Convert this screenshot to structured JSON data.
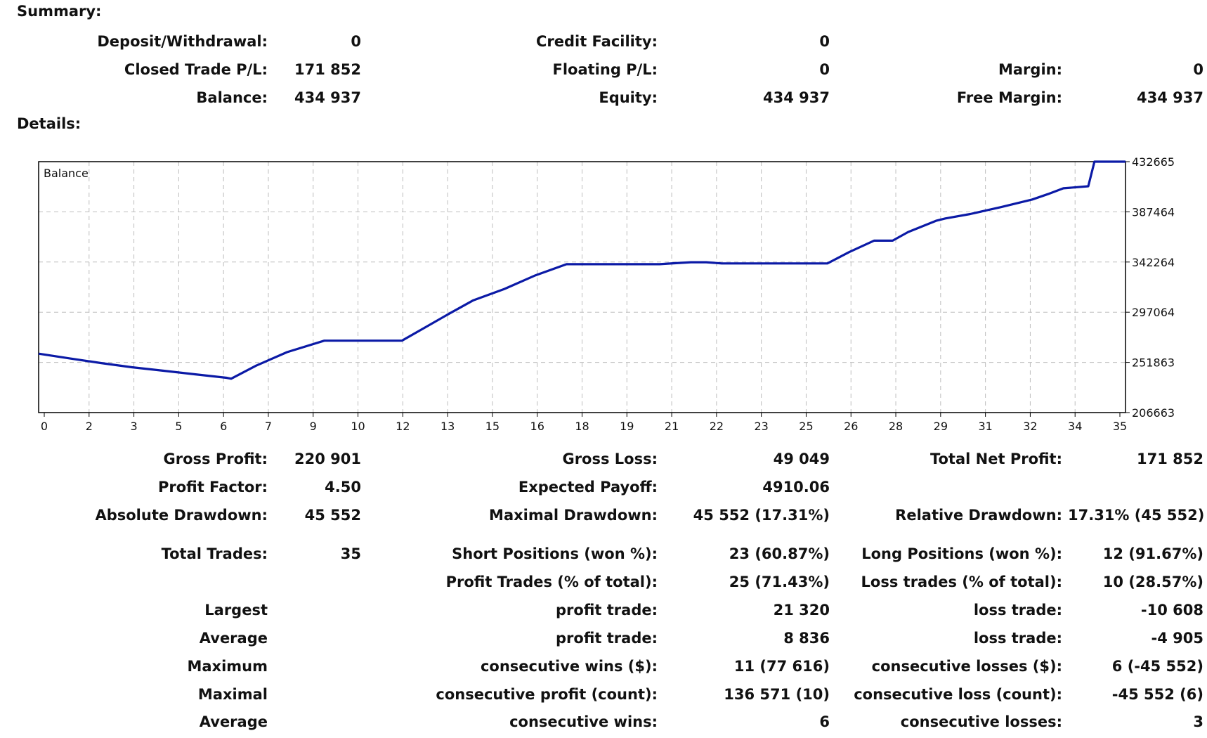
{
  "summary": {
    "heading": "Summary:",
    "rows": [
      [
        {
          "label": "Deposit/Withdrawal:",
          "value": "0"
        },
        {
          "label": "Credit Facility:",
          "value": "0"
        },
        {
          "label": "",
          "value": ""
        }
      ],
      [
        {
          "label": "Closed Trade P/L:",
          "value": "171 852"
        },
        {
          "label": "Floating P/L:",
          "value": "0"
        },
        {
          "label": "Margin:",
          "value": "0"
        }
      ],
      [
        {
          "label": "Balance:",
          "value": "434 937"
        },
        {
          "label": "Equity:",
          "value": "434 937"
        },
        {
          "label": "Free Margin:",
          "value": "434 937"
        }
      ]
    ]
  },
  "details": {
    "heading": "Details:",
    "rows": [
      [
        {
          "label": "Gross Profit:",
          "value": "220 901"
        },
        {
          "label": "Gross Loss:",
          "value": "49 049"
        },
        {
          "label": "Total Net Profit:",
          "value": "171 852"
        }
      ],
      [
        {
          "label": "Profit Factor:",
          "value": "4.50"
        },
        {
          "label": "Expected Payoff:",
          "value": "4910.06"
        },
        {
          "label": "",
          "value": ""
        }
      ],
      [
        {
          "label": "Absolute Drawdown:",
          "value": "45 552"
        },
        {
          "label": "Maximal Drawdown:",
          "value": "45 552 (17.31%)"
        },
        {
          "label": "Relative Drawdown:",
          "value": "17.31% (45 552)"
        }
      ],
      [
        {
          "label": "Total Trades:",
          "value": "35"
        },
        {
          "label": "Short Positions (won %):",
          "value": "23 (60.87%)"
        },
        {
          "label": "Long Positions (won %):",
          "value": "12 (91.67%)"
        }
      ],
      [
        {
          "label": "",
          "value": ""
        },
        {
          "label": "Profit Trades (% of total):",
          "value": "25 (71.43%)"
        },
        {
          "label": "Loss trades (% of total):",
          "value": "10 (28.57%)"
        }
      ],
      [
        {
          "label": "Largest",
          "value": ""
        },
        {
          "label": "profit trade:",
          "value": "21 320"
        },
        {
          "label": "loss trade:",
          "value": "-10 608"
        }
      ],
      [
        {
          "label": "Average",
          "value": ""
        },
        {
          "label": "profit trade:",
          "value": "8 836"
        },
        {
          "label": "loss trade:",
          "value": "-4 905"
        }
      ],
      [
        {
          "label": "Maximum",
          "value": ""
        },
        {
          "label": "consecutive wins ($):",
          "value": "11 (77 616)"
        },
        {
          "label": "consecutive losses ($):",
          "value": "6 (-45 552)"
        }
      ],
      [
        {
          "label": "Maximal",
          "value": ""
        },
        {
          "label": "consecutive profit (count):",
          "value": "136 571 (10)"
        },
        {
          "label": "consecutive loss (count):",
          "value": "-45 552 (6)"
        }
      ],
      [
        {
          "label": "Average",
          "value": ""
        },
        {
          "label": "consecutive wins:",
          "value": "6"
        },
        {
          "label": "consecutive losses:",
          "value": "3"
        }
      ]
    ]
  },
  "chart_data": {
    "type": "line",
    "series": [
      {
        "name": "Balance",
        "x": [
          0,
          1,
          2,
          3,
          4,
          5,
          6.05,
          6.2,
          7,
          8,
          9.2,
          10.5,
          11.7,
          12.5,
          13.2,
          14,
          15,
          16,
          17,
          18,
          19,
          20,
          20.3,
          21,
          21.5,
          22,
          23,
          24,
          25,
          25.4,
          26.1,
          26.9,
          27.5,
          28,
          28.9,
          29.2,
          30,
          31,
          32,
          32.5,
          33,
          33.8,
          34,
          35
        ],
        "y": [
          259700,
          255500,
          251300,
          247500,
          244400,
          241200,
          238000,
          237200,
          248900,
          261100,
          271400,
          271400,
          271400,
          284200,
          295400,
          307800,
          318000,
          330300,
          340300,
          340300,
          340300,
          340300,
          340900,
          342100,
          342100,
          341000,
          341000,
          341000,
          341000,
          341000,
          351200,
          361500,
          361500,
          369300,
          379400,
          381500,
          385500,
          391800,
          398600,
          403400,
          408700,
          410500,
          432665,
          432665
        ]
      }
    ],
    "x_tick_labels": [
      "0",
      "2",
      "3",
      "5",
      "6",
      "7",
      "9",
      "10",
      "12",
      "13",
      "15",
      "16",
      "18",
      "19",
      "21",
      "22",
      "23",
      "25",
      "26",
      "28",
      "29",
      "31",
      "32",
      "34",
      "35"
    ],
    "y_ticks": [
      206663,
      251863,
      297064,
      342264,
      387464,
      432665
    ],
    "ylim": [
      206663,
      432665
    ],
    "x_range": [
      0,
      35
    ],
    "grid": true,
    "line_color": "#0b1aa6"
  }
}
